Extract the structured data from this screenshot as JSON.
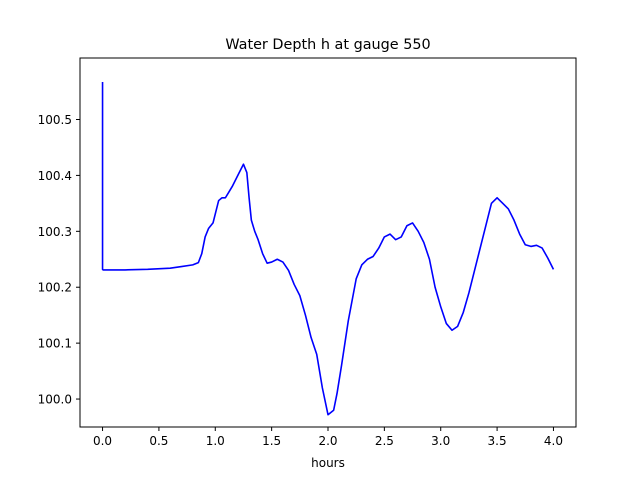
{
  "chart_data": {
    "type": "line",
    "title": "Water Depth h at gauge 550",
    "xlabel": "hours",
    "ylabel": "",
    "xlim": [
      -0.2,
      4.2
    ],
    "ylim": [
      99.95,
      100.61
    ],
    "x_ticks": [
      0.0,
      0.5,
      1.0,
      1.5,
      2.0,
      2.5,
      3.0,
      3.5,
      4.0
    ],
    "x_tick_labels": [
      "0.0",
      "0.5",
      "1.0",
      "1.5",
      "2.0",
      "2.5",
      "3.0",
      "3.5",
      "4.0"
    ],
    "y_ticks": [
      100.0,
      100.1,
      100.2,
      100.3,
      100.4,
      100.5
    ],
    "y_tick_labels": [
      "100.0",
      "100.1",
      "100.2",
      "100.3",
      "100.4",
      "100.5"
    ],
    "grid": false,
    "line_color": "#0000ff",
    "series": [
      {
        "x": [
          0.0,
          0.0,
          0.005,
          0.2,
          0.4,
          0.6,
          0.7,
          0.8,
          0.85,
          0.88,
          0.91,
          0.94,
          0.98,
          1.03,
          1.06,
          1.09,
          1.12,
          1.15,
          1.2,
          1.25,
          1.28,
          1.3,
          1.32,
          1.35,
          1.38,
          1.42,
          1.46,
          1.5,
          1.55,
          1.6,
          1.65,
          1.7,
          1.75,
          1.8,
          1.85,
          1.9,
          1.95,
          2.0,
          2.05,
          2.08,
          2.12,
          2.18,
          2.25,
          2.3,
          2.35,
          2.4,
          2.45,
          2.5,
          2.55,
          2.6,
          2.65,
          2.7,
          2.75,
          2.8,
          2.85,
          2.9,
          2.95,
          3.0,
          3.05,
          3.1,
          3.15,
          3.2,
          3.25,
          3.3,
          3.35,
          3.4,
          3.45,
          3.5,
          3.55,
          3.6,
          3.65,
          3.7,
          3.75,
          3.8,
          3.85,
          3.9,
          3.95,
          4.0
        ],
        "y": [
          100.567,
          100.232,
          100.231,
          100.231,
          100.232,
          100.234,
          100.237,
          100.24,
          100.244,
          100.26,
          100.29,
          100.305,
          100.315,
          100.355,
          100.36,
          100.36,
          100.37,
          100.38,
          100.4,
          100.42,
          100.405,
          100.36,
          100.32,
          100.3,
          100.285,
          100.26,
          100.243,
          100.245,
          100.25,
          100.245,
          100.23,
          100.205,
          100.185,
          100.15,
          100.11,
          100.08,
          100.02,
          99.972,
          99.98,
          100.01,
          100.06,
          100.14,
          100.215,
          100.24,
          100.25,
          100.255,
          100.27,
          100.29,
          100.295,
          100.285,
          100.29,
          100.31,
          100.315,
          100.3,
          100.28,
          100.25,
          100.2,
          100.165,
          100.135,
          100.123,
          100.13,
          100.155,
          100.19,
          100.23,
          100.27,
          100.31,
          100.35,
          100.36,
          100.35,
          100.34,
          100.32,
          100.295,
          100.276,
          100.273,
          100.275,
          100.27,
          100.252,
          100.232
        ]
      }
    ]
  }
}
